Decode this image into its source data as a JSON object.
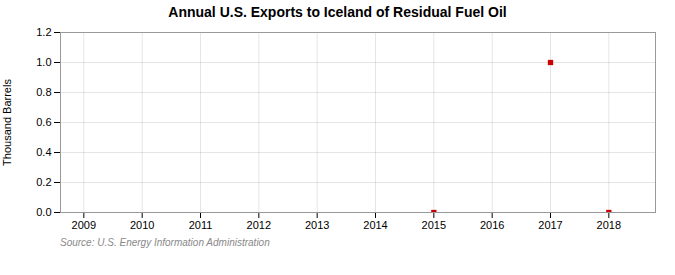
{
  "chart_data": {
    "type": "scatter",
    "title": "Annual U.S. Exports to Iceland of Residual Fuel Oil",
    "ylabel": "Thousand Barrels",
    "caption": "Source: U.S. Energy Information Administration",
    "x": [
      2015,
      2017,
      2018
    ],
    "values": [
      0,
      1.0,
      0
    ],
    "color": "#cc0000",
    "marker": "square",
    "xlim": [
      2008.6,
      2018.8
    ],
    "ylim": [
      0,
      1.2
    ],
    "xticks": [
      2009,
      2010,
      2011,
      2012,
      2013,
      2014,
      2015,
      2016,
      2017,
      2018
    ],
    "yticks": [
      {
        "value": 0.0,
        "label": "0.0"
      },
      0.2,
      0.4,
      0.6,
      0.8,
      {
        "value": 1.0,
        "label": "1.0"
      },
      1.2
    ],
    "grid": true
  }
}
